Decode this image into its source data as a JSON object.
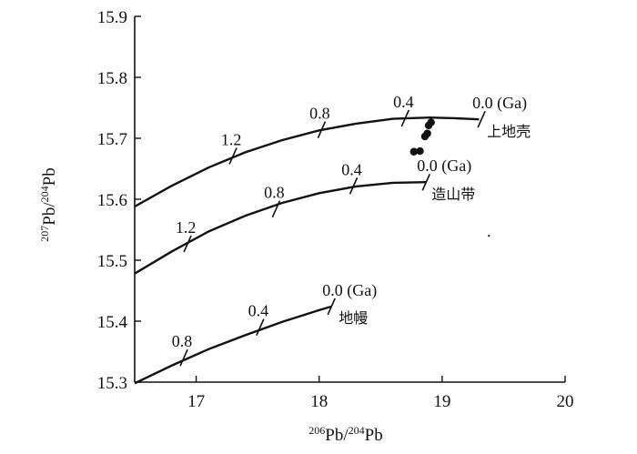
{
  "chart_data": {
    "type": "line",
    "xlabel_sup": "206",
    "xlabel_main": "Pb/",
    "xlabel_sup2": "204",
    "xlabel_main2": "Pb",
    "ylabel_sup": "207",
    "ylabel_main": "Pb/",
    "ylabel_sup2": "204",
    "ylabel_main2": "Pb",
    "xlim": [
      16.5,
      20
    ],
    "ylim": [
      15.3,
      15.9
    ],
    "x_ticks": [
      "17",
      "18",
      "19",
      "20"
    ],
    "y_ticks": [
      "15.3",
      "15.4",
      "15.5",
      "15.6",
      "15.7",
      "15.8",
      "15.9"
    ],
    "grid": false,
    "series": [
      {
        "name": "上地壳",
        "x": [
          16.5,
          16.8,
          17.1,
          17.4,
          17.7,
          18.0,
          18.3,
          18.6,
          18.9,
          19.1,
          19.3
        ],
        "y": [
          15.588,
          15.622,
          15.652,
          15.677,
          15.697,
          15.713,
          15.724,
          15.732,
          15.734,
          15.733,
          15.731
        ],
        "ticks": [
          {
            "x": 17.3,
            "y": 15.671,
            "label": "1.2"
          },
          {
            "x": 18.02,
            "y": 15.714,
            "label": "0.8"
          },
          {
            "x": 18.7,
            "y": 15.733,
            "label": "0.4"
          },
          {
            "x": 19.32,
            "y": 15.731,
            "label": "0.0 (Ga)"
          }
        ]
      },
      {
        "name": "造山带",
        "x": [
          16.5,
          16.8,
          17.1,
          17.4,
          17.7,
          18.0,
          18.3,
          18.6,
          18.87
        ],
        "y": [
          15.478,
          15.514,
          15.547,
          15.573,
          15.594,
          15.61,
          15.621,
          15.627,
          15.628
        ],
        "ticks": [
          {
            "x": 16.93,
            "y": 15.527,
            "label": "1.2"
          },
          {
            "x": 17.65,
            "y": 15.584,
            "label": "0.8"
          },
          {
            "x": 18.28,
            "y": 15.622,
            "label": "0.4"
          },
          {
            "x": 18.87,
            "y": 15.628,
            "label": "0.0 (Ga)"
          }
        ]
      },
      {
        "name": "地幔",
        "x": [
          16.5,
          16.8,
          17.1,
          17.4,
          17.7,
          18.0,
          18.1
        ],
        "y": [
          15.298,
          15.327,
          15.354,
          15.377,
          15.399,
          15.418,
          15.424
        ],
        "ticks": [
          {
            "x": 16.9,
            "y": 15.34,
            "label": "0.8"
          },
          {
            "x": 17.52,
            "y": 15.39,
            "label": "0.4"
          },
          {
            "x": 18.1,
            "y": 15.424,
            "label": "0.0 (Ga)"
          }
        ]
      }
    ],
    "samples": {
      "x": [
        18.77,
        18.82,
        18.86,
        18.88,
        18.89,
        18.91
      ],
      "y": [
        15.678,
        15.679,
        15.703,
        15.708,
        15.721,
        15.726
      ]
    },
    "scatter_point": {
      "x": 19.38,
      "y": 15.54
    }
  }
}
